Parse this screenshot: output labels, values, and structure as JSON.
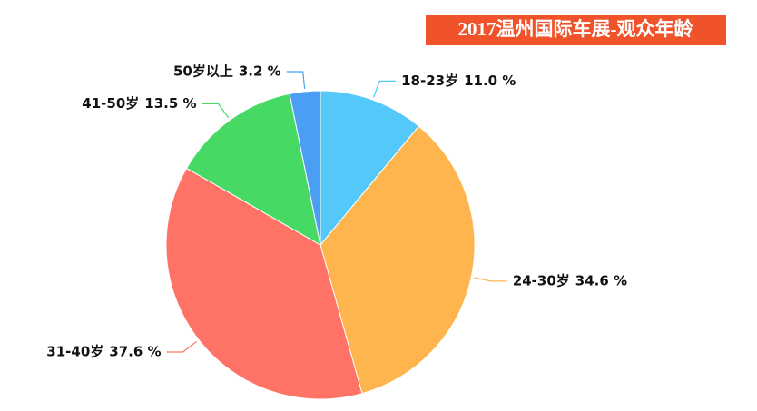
{
  "chart_data": {
    "type": "pie",
    "title": "2017温州国际车展-观众年龄",
    "categories": [
      "18-23岁",
      "24-30岁",
      "31-40岁",
      "41-50岁",
      "50岁以上"
    ],
    "values": [
      11.0,
      34.6,
      37.6,
      13.5,
      3.2
    ],
    "value_labels": [
      "11.0 %",
      "34.6 %",
      "37.6 %",
      "13.5 %",
      "3.2 %"
    ],
    "colors": [
      "#55c8fa",
      "#ffb54d",
      "#ff7366",
      "#46d963",
      "#4a9ff5"
    ]
  }
}
